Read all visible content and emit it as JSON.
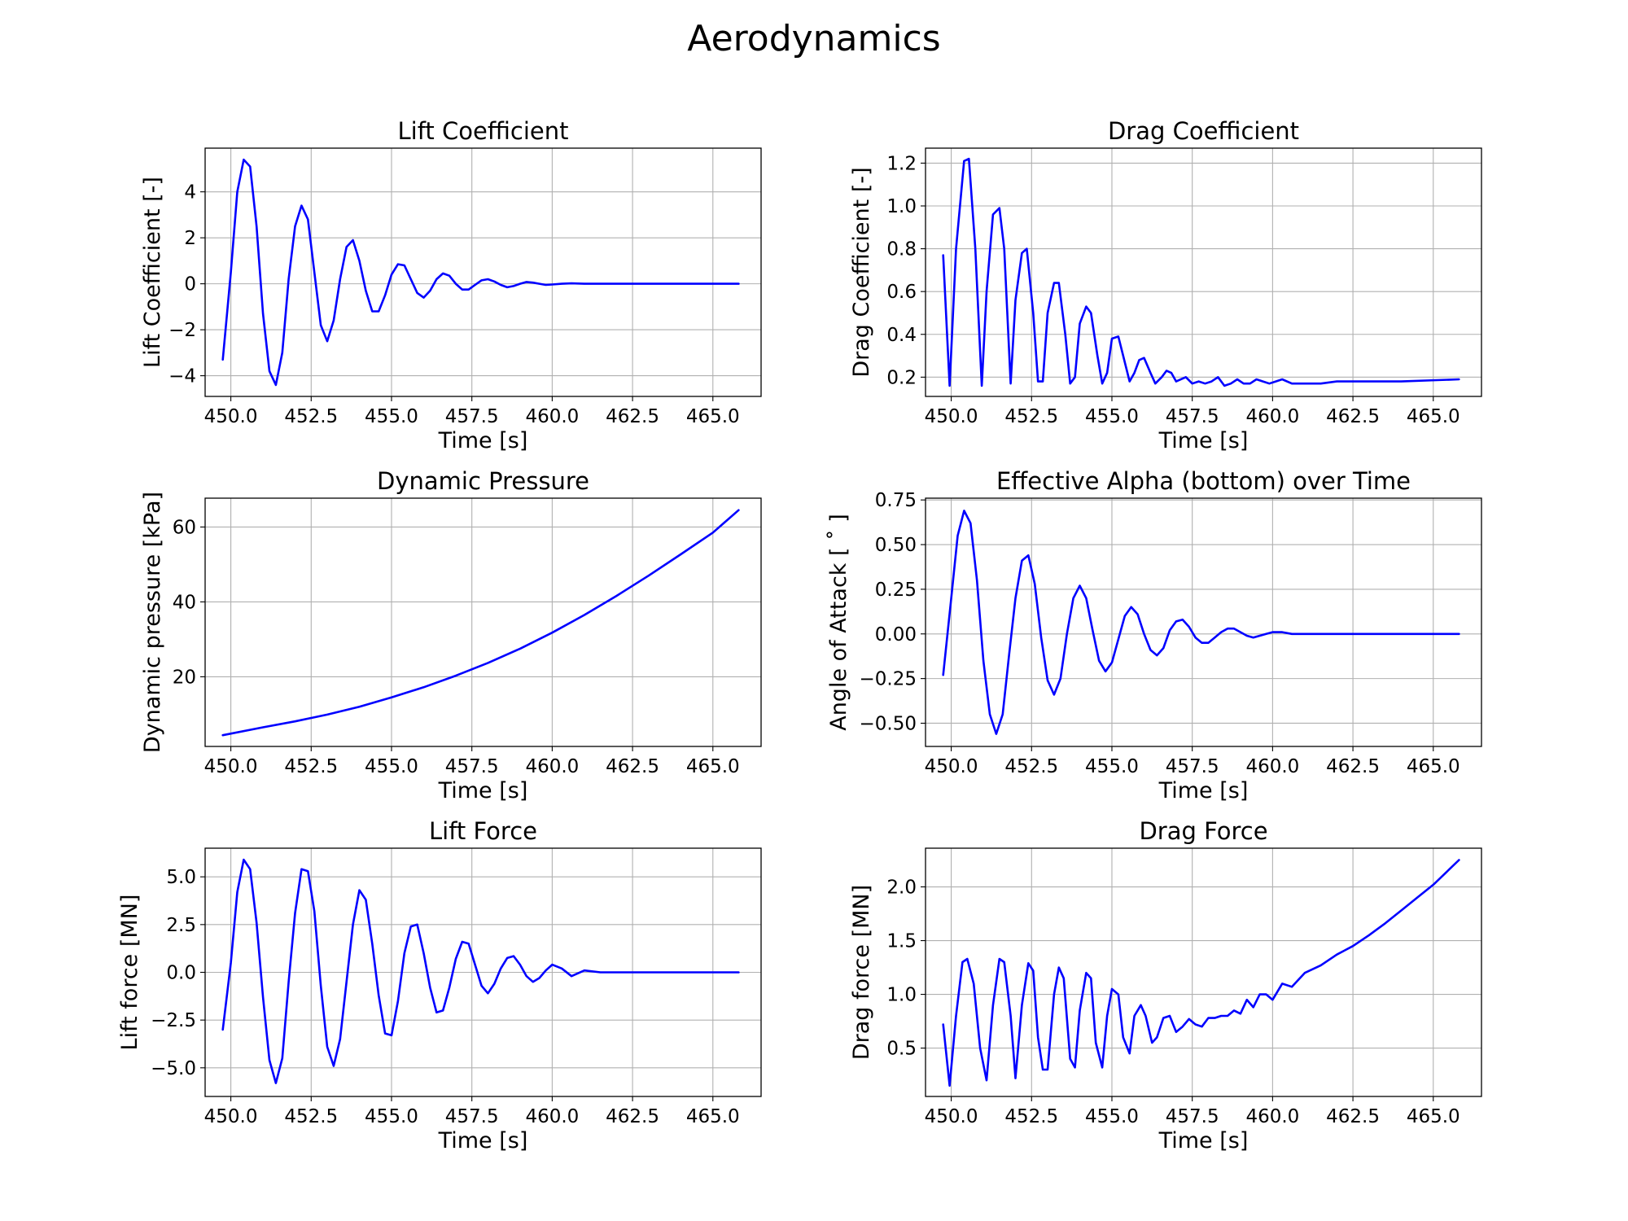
{
  "figure": {
    "title": "Aerodynamics",
    "line_color": "#0000ff"
  },
  "chart_data": [
    {
      "id": "lift_coefficient",
      "type": "line",
      "title": "Lift Coefficient",
      "xlabel": "Time [s]",
      "ylabel": "Lift Coefficient [-]",
      "xlim": [
        449.2,
        466.5
      ],
      "ylim": [
        -4.9,
        5.9
      ],
      "xticks": [
        450.0,
        452.5,
        455.0,
        457.5,
        460.0,
        462.5,
        465.0
      ],
      "xtick_labels": [
        "450.0",
        "452.5",
        "455.0",
        "457.5",
        "460.0",
        "462.5",
        "465.0"
      ],
      "yticks": [
        -4,
        -2,
        0,
        2,
        4
      ],
      "ytick_labels": [
        "−4",
        "−2",
        "0",
        "2",
        "4"
      ],
      "grid": true,
      "series": [
        {
          "color": "#0000ff",
          "x": [
            449.75,
            450.0,
            450.2,
            450.4,
            450.6,
            450.8,
            451.0,
            451.2,
            451.4,
            451.6,
            451.8,
            452.0,
            452.2,
            452.4,
            452.6,
            452.8,
            453.0,
            453.2,
            453.4,
            453.6,
            453.8,
            454.0,
            454.2,
            454.4,
            454.6,
            454.8,
            455.0,
            455.2,
            455.4,
            455.6,
            455.8,
            456.0,
            456.2,
            456.4,
            456.6,
            456.8,
            457.0,
            457.2,
            457.4,
            457.6,
            457.8,
            458.0,
            458.2,
            458.4,
            458.6,
            458.8,
            459.0,
            459.2,
            459.4,
            459.6,
            459.8,
            460.0,
            460.3,
            460.6,
            461.0,
            461.5,
            462.0,
            463.0,
            464.0,
            465.8
          ],
          "y": [
            -3.3,
            0.5,
            4.0,
            5.4,
            5.1,
            2.5,
            -1.3,
            -3.8,
            -4.4,
            -3.0,
            0.2,
            2.5,
            3.4,
            2.8,
            0.5,
            -1.8,
            -2.5,
            -1.6,
            0.2,
            1.6,
            1.9,
            1.0,
            -0.3,
            -1.2,
            -1.2,
            -0.5,
            0.4,
            0.85,
            0.8,
            0.2,
            -0.4,
            -0.6,
            -0.3,
            0.2,
            0.45,
            0.35,
            0.0,
            -0.25,
            -0.25,
            -0.05,
            0.15,
            0.2,
            0.1,
            -0.05,
            -0.15,
            -0.1,
            0.0,
            0.08,
            0.05,
            0.0,
            -0.05,
            -0.03,
            0.0,
            0.02,
            0.0,
            0.0,
            0.0,
            0.0,
            0.0,
            0.0
          ]
        }
      ]
    },
    {
      "id": "drag_coefficient",
      "type": "line",
      "title": "Drag Coefficient",
      "xlabel": "Time [s]",
      "ylabel": "Drag Coefficient [-]",
      "xlim": [
        449.2,
        466.5
      ],
      "ylim": [
        0.11,
        1.27
      ],
      "xticks": [
        450.0,
        452.5,
        455.0,
        457.5,
        460.0,
        462.5,
        465.0
      ],
      "xtick_labels": [
        "450.0",
        "452.5",
        "455.0",
        "457.5",
        "460.0",
        "462.5",
        "465.0"
      ],
      "yticks": [
        0.2,
        0.4,
        0.6,
        0.8,
        1.0,
        1.2
      ],
      "ytick_labels": [
        "0.2",
        "0.4",
        "0.6",
        "0.8",
        "1.0",
        "1.2"
      ],
      "grid": true,
      "series": [
        {
          "color": "#0000ff",
          "x": [
            449.75,
            449.95,
            450.15,
            450.4,
            450.55,
            450.75,
            450.95,
            451.1,
            451.3,
            451.5,
            451.65,
            451.85,
            452.0,
            452.2,
            452.35,
            452.55,
            452.7,
            452.85,
            453.0,
            453.2,
            453.35,
            453.55,
            453.7,
            453.85,
            454.0,
            454.2,
            454.35,
            454.55,
            454.7,
            454.85,
            455.0,
            455.2,
            455.35,
            455.55,
            455.7,
            455.85,
            456.0,
            456.2,
            456.35,
            456.55,
            456.7,
            456.85,
            457.0,
            457.3,
            457.5,
            457.7,
            457.9,
            458.1,
            458.3,
            458.5,
            458.7,
            458.9,
            459.1,
            459.3,
            459.5,
            459.7,
            459.9,
            460.1,
            460.3,
            460.6,
            461.0,
            461.5,
            462.0,
            463.0,
            464.0,
            465.8
          ],
          "y": [
            0.77,
            0.16,
            0.8,
            1.21,
            1.22,
            0.8,
            0.16,
            0.6,
            0.96,
            0.99,
            0.8,
            0.17,
            0.56,
            0.78,
            0.8,
            0.5,
            0.18,
            0.18,
            0.5,
            0.64,
            0.64,
            0.4,
            0.17,
            0.2,
            0.45,
            0.53,
            0.5,
            0.3,
            0.17,
            0.22,
            0.38,
            0.39,
            0.3,
            0.18,
            0.22,
            0.28,
            0.29,
            0.22,
            0.17,
            0.2,
            0.23,
            0.22,
            0.18,
            0.2,
            0.17,
            0.18,
            0.17,
            0.18,
            0.2,
            0.16,
            0.17,
            0.19,
            0.17,
            0.17,
            0.19,
            0.18,
            0.17,
            0.18,
            0.19,
            0.17,
            0.17,
            0.17,
            0.18,
            0.18,
            0.18,
            0.19
          ]
        }
      ]
    },
    {
      "id": "dynamic_pressure",
      "type": "line",
      "title": "Dynamic Pressure",
      "xlabel": "Time [s]",
      "ylabel": "Dynamic pressure [kPa]",
      "xlim": [
        449.2,
        466.5
      ],
      "ylim": [
        1.4,
        67.7
      ],
      "xticks": [
        450.0,
        452.5,
        455.0,
        457.5,
        460.0,
        462.5,
        465.0
      ],
      "xtick_labels": [
        "450.0",
        "452.5",
        "455.0",
        "457.5",
        "460.0",
        "462.5",
        "465.0"
      ],
      "yticks": [
        20,
        40,
        60
      ],
      "ytick_labels": [
        "20",
        "40",
        "60"
      ],
      "grid": true,
      "series": [
        {
          "color": "#0000ff",
          "x": [
            449.75,
            451.0,
            452.0,
            453.0,
            454.0,
            455.0,
            456.0,
            457.0,
            458.0,
            459.0,
            460.0,
            461.0,
            462.0,
            463.0,
            464.0,
            465.0,
            465.8
          ],
          "y": [
            4.4,
            6.5,
            8.1,
            9.9,
            12.0,
            14.5,
            17.2,
            20.3,
            23.7,
            27.5,
            31.8,
            36.5,
            41.6,
            47.0,
            52.7,
            58.5,
            64.5
          ]
        }
      ]
    },
    {
      "id": "effective_alpha",
      "type": "line",
      "title": "Effective Alpha (bottom) over Time",
      "xlabel": "Time [s]",
      "ylabel": "Angle of Attack [$^\\circ$]",
      "ylabel_display": "Angle of Attack [ ˚ ]",
      "xlim": [
        449.2,
        466.5
      ],
      "ylim": [
        -0.63,
        0.76
      ],
      "xticks": [
        450.0,
        452.5,
        455.0,
        457.5,
        460.0,
        462.5,
        465.0
      ],
      "xtick_labels": [
        "450.0",
        "452.5",
        "455.0",
        "457.5",
        "460.0",
        "462.5",
        "465.0"
      ],
      "yticks": [
        -0.5,
        -0.25,
        0.0,
        0.25,
        0.5,
        0.75
      ],
      "ytick_labels": [
        "−0.50",
        "−0.25",
        "0.00",
        "0.25",
        "0.50",
        "0.75"
      ],
      "grid": true,
      "series": [
        {
          "color": "#0000ff",
          "x": [
            449.75,
            450.0,
            450.2,
            450.4,
            450.6,
            450.8,
            451.0,
            451.2,
            451.4,
            451.6,
            451.8,
            452.0,
            452.2,
            452.4,
            452.6,
            452.8,
            453.0,
            453.2,
            453.4,
            453.6,
            453.8,
            454.0,
            454.2,
            454.4,
            454.6,
            454.8,
            455.0,
            455.2,
            455.4,
            455.6,
            455.8,
            456.0,
            456.2,
            456.4,
            456.6,
            456.8,
            457.0,
            457.2,
            457.4,
            457.6,
            457.8,
            458.0,
            458.2,
            458.4,
            458.6,
            458.8,
            459.0,
            459.2,
            459.4,
            459.6,
            459.8,
            460.0,
            460.3,
            460.6,
            461.0,
            461.5,
            462.0,
            463.0,
            464.0,
            465.8
          ],
          "y": [
            -0.23,
            0.2,
            0.55,
            0.69,
            0.62,
            0.3,
            -0.15,
            -0.45,
            -0.56,
            -0.45,
            -0.12,
            0.2,
            0.41,
            0.44,
            0.28,
            -0.02,
            -0.26,
            -0.34,
            -0.25,
            0.0,
            0.2,
            0.27,
            0.2,
            0.02,
            -0.15,
            -0.21,
            -0.16,
            -0.03,
            0.1,
            0.15,
            0.11,
            0.0,
            -0.09,
            -0.12,
            -0.08,
            0.02,
            0.07,
            0.08,
            0.04,
            -0.02,
            -0.05,
            -0.05,
            -0.02,
            0.01,
            0.03,
            0.03,
            0.01,
            -0.01,
            -0.02,
            -0.01,
            0.0,
            0.01,
            0.01,
            0.0,
            0.0,
            0.0,
            0.0,
            0.0,
            0.0,
            0.0
          ]
        }
      ]
    },
    {
      "id": "lift_force",
      "type": "line",
      "title": "Lift Force",
      "xlabel": "Time [s]",
      "ylabel": "Lift force [MN]",
      "xlim": [
        449.2,
        466.5
      ],
      "ylim": [
        -6.5,
        6.5
      ],
      "xticks": [
        450.0,
        452.5,
        455.0,
        457.5,
        460.0,
        462.5,
        465.0
      ],
      "xtick_labels": [
        "450.0",
        "452.5",
        "455.0",
        "457.5",
        "460.0",
        "462.5",
        "465.0"
      ],
      "yticks": [
        -5.0,
        -2.5,
        0.0,
        2.5,
        5.0
      ],
      "ytick_labels": [
        "−5.0",
        "−2.5",
        "0.0",
        "2.5",
        "5.0"
      ],
      "grid": true,
      "series": [
        {
          "color": "#0000ff",
          "x": [
            449.75,
            450.0,
            450.2,
            450.4,
            450.6,
            450.8,
            451.0,
            451.2,
            451.4,
            451.6,
            451.8,
            452.0,
            452.2,
            452.4,
            452.6,
            452.8,
            453.0,
            453.2,
            453.4,
            453.6,
            453.8,
            454.0,
            454.2,
            454.4,
            454.6,
            454.8,
            455.0,
            455.2,
            455.4,
            455.6,
            455.8,
            456.0,
            456.2,
            456.4,
            456.6,
            456.8,
            457.0,
            457.2,
            457.4,
            457.6,
            457.8,
            458.0,
            458.2,
            458.4,
            458.6,
            458.8,
            459.0,
            459.2,
            459.4,
            459.6,
            459.8,
            460.0,
            460.3,
            460.6,
            461.0,
            461.5,
            462.0,
            463.0,
            464.0,
            465.8
          ],
          "y": [
            -3.0,
            0.5,
            4.2,
            5.9,
            5.4,
            2.6,
            -1.3,
            -4.6,
            -5.8,
            -4.5,
            -0.5,
            3.1,
            5.4,
            5.3,
            3.2,
            -0.7,
            -3.9,
            -4.9,
            -3.5,
            -0.5,
            2.5,
            4.3,
            3.8,
            1.5,
            -1.2,
            -3.2,
            -3.3,
            -1.5,
            1.0,
            2.4,
            2.5,
            1.0,
            -0.8,
            -2.1,
            -2.0,
            -0.8,
            0.7,
            1.6,
            1.5,
            0.4,
            -0.7,
            -1.1,
            -0.6,
            0.2,
            0.75,
            0.85,
            0.4,
            -0.2,
            -0.5,
            -0.3,
            0.1,
            0.4,
            0.2,
            -0.2,
            0.1,
            0.0,
            0.0,
            0.0,
            0.0,
            0.0
          ]
        }
      ]
    },
    {
      "id": "drag_force",
      "type": "line",
      "title": "Drag Force",
      "xlabel": "Time [s]",
      "ylabel": "Drag force [MN]",
      "xlim": [
        449.2,
        466.5
      ],
      "ylim": [
        0.05,
        2.36
      ],
      "xticks": [
        450.0,
        452.5,
        455.0,
        457.5,
        460.0,
        462.5,
        465.0
      ],
      "xtick_labels": [
        "450.0",
        "452.5",
        "455.0",
        "457.5",
        "460.0",
        "462.5",
        "465.0"
      ],
      "yticks": [
        0.5,
        1.0,
        1.5,
        2.0
      ],
      "ytick_labels": [
        "0.5",
        "1.0",
        "1.5",
        "2.0"
      ],
      "grid": true,
      "series": [
        {
          "color": "#0000ff",
          "x": [
            449.75,
            449.95,
            450.15,
            450.35,
            450.5,
            450.7,
            450.9,
            451.1,
            451.3,
            451.5,
            451.65,
            451.85,
            452.0,
            452.2,
            452.4,
            452.55,
            452.7,
            452.85,
            453.0,
            453.2,
            453.35,
            453.5,
            453.7,
            453.85,
            454.0,
            454.2,
            454.35,
            454.5,
            454.7,
            454.85,
            455.0,
            455.2,
            455.35,
            455.55,
            455.7,
            455.9,
            456.05,
            456.25,
            456.4,
            456.6,
            456.8,
            457.0,
            457.2,
            457.4,
            457.6,
            457.8,
            458.0,
            458.2,
            458.4,
            458.6,
            458.8,
            459.0,
            459.2,
            459.4,
            459.6,
            459.8,
            460.0,
            460.3,
            460.6,
            461.0,
            461.5,
            462.0,
            462.5,
            463.0,
            463.5,
            464.0,
            464.5,
            465.0,
            465.8
          ],
          "y": [
            0.72,
            0.15,
            0.8,
            1.3,
            1.33,
            1.1,
            0.5,
            0.2,
            0.9,
            1.33,
            1.3,
            0.8,
            0.22,
            0.9,
            1.29,
            1.22,
            0.6,
            0.3,
            0.3,
            1.0,
            1.25,
            1.15,
            0.4,
            0.32,
            0.85,
            1.2,
            1.15,
            0.55,
            0.32,
            0.8,
            1.05,
            1.0,
            0.6,
            0.45,
            0.8,
            0.9,
            0.8,
            0.55,
            0.6,
            0.78,
            0.8,
            0.65,
            0.7,
            0.77,
            0.72,
            0.7,
            0.78,
            0.78,
            0.8,
            0.8,
            0.85,
            0.82,
            0.95,
            0.88,
            1.0,
            1.0,
            0.95,
            1.1,
            1.07,
            1.2,
            1.27,
            1.37,
            1.45,
            1.55,
            1.66,
            1.78,
            1.9,
            2.02,
            2.25
          ]
        }
      ]
    }
  ]
}
